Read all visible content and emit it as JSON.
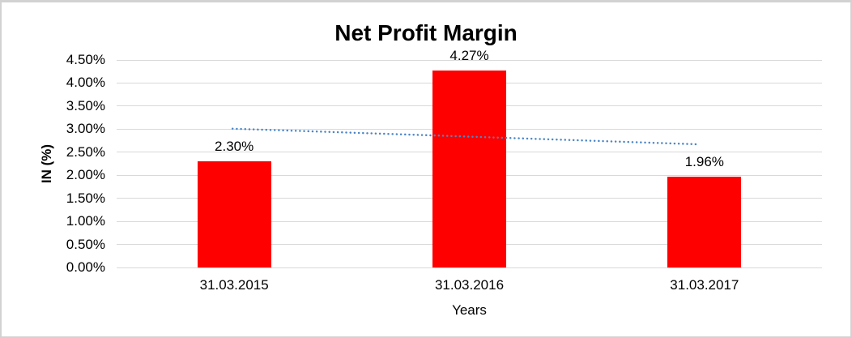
{
  "chart_data": {
    "type": "bar",
    "title": "Net Profit Margin",
    "xlabel": "Years",
    "ylabel": "IN (%)",
    "categories": [
      "31.03.2015",
      "31.03.2016",
      "31.03.2017"
    ],
    "values": [
      2.3,
      4.27,
      1.96
    ],
    "data_labels": [
      "2.30%",
      "4.27%",
      "1.96%"
    ],
    "ylim": [
      0,
      4.5
    ],
    "ytick_step": 0.5,
    "ytick_labels": [
      "0.00%",
      "0.50%",
      "1.00%",
      "1.50%",
      "2.00%",
      "2.50%",
      "3.00%",
      "3.50%",
      "4.00%",
      "4.50%"
    ],
    "grid": true,
    "legend": "none",
    "bar_color": "#ff0000",
    "gridline_color": "#d9d9d9",
    "trendline": {
      "type": "linear",
      "style": "dotted",
      "color": "#4a86c8",
      "start_value": 3.01,
      "end_value": 2.67
    }
  }
}
